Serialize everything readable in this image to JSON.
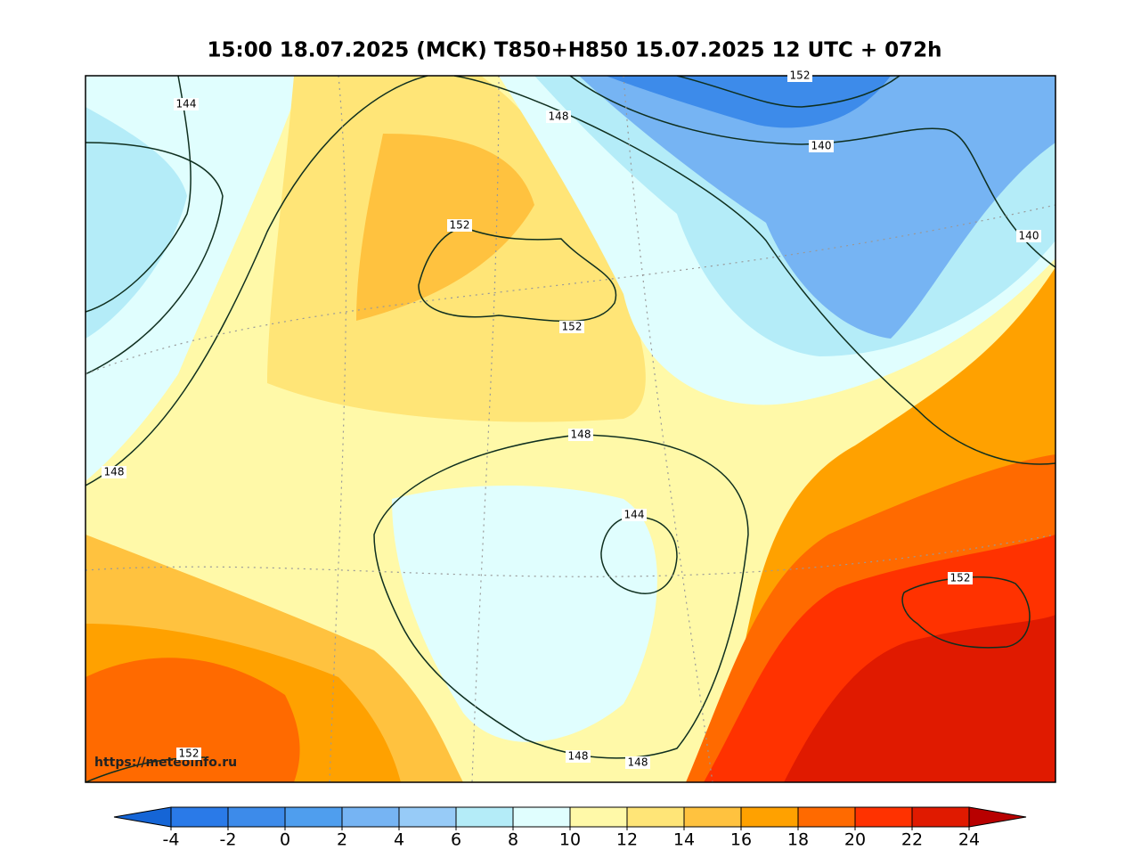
{
  "title": "15:00 18.07.2025 (МСК) T850+H850 15.07.2025 12 UTC + 072h",
  "watermark": "https://meteoinfo.ru",
  "contour_labels": [
    144,
    148,
    152,
    140,
    140,
    152,
    152,
    148,
    148,
    144,
    152,
    152,
    148,
    148
  ],
  "colorbar": {
    "ticks": [
      -4,
      -2,
      0,
      2,
      4,
      6,
      8,
      10,
      12,
      14,
      16,
      18,
      20,
      22,
      24
    ],
    "colors": [
      "#1565d6",
      "#2a7ae8",
      "#3d8bea",
      "#4f9eee",
      "#76b4f3",
      "#97cbf7",
      "#b4ecf8",
      "#e0fefe",
      "#fff9a8",
      "#ffe577",
      "#ffc23f",
      "#ffa100",
      "#ff6a00",
      "#ff3200",
      "#e01a00",
      "#b80000"
    ]
  }
}
